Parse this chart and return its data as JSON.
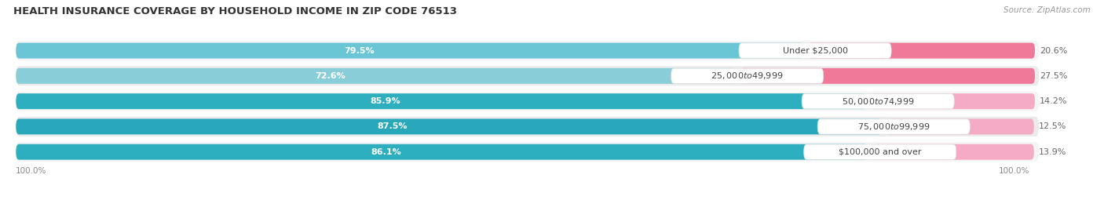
{
  "title": "HEALTH INSURANCE COVERAGE BY HOUSEHOLD INCOME IN ZIP CODE 76513",
  "source": "Source: ZipAtlas.com",
  "categories": [
    "Under $25,000",
    "$25,000 to $49,999",
    "$50,000 to $74,999",
    "$75,000 to $99,999",
    "$100,000 and over"
  ],
  "with_coverage": [
    79.5,
    72.6,
    85.9,
    87.5,
    86.1
  ],
  "without_coverage": [
    20.6,
    27.5,
    14.2,
    12.5,
    13.9
  ],
  "color_with_1": "#5bbccc",
  "color_with_2": "#8dd0d8",
  "color_with_3": "#2da8b8",
  "color_with_4": "#29a0b0",
  "color_with_5": "#2da8b8",
  "color_without_1": "#f07090",
  "color_without_2": "#f07090",
  "color_without_3": "#f4a0bc",
  "color_without_4": "#f4a0bc",
  "color_without_5": "#f4a0bc",
  "color_with": "#4ab8c8",
  "color_without": "#f07898",
  "title_fontsize": 9.5,
  "label_fontsize": 8,
  "source_fontsize": 7.5,
  "tick_fontsize": 7.5,
  "legend_fontsize": 8,
  "background_color": "#ffffff",
  "row_colors": [
    "#f0f0f0",
    "#e8e8e8",
    "#f0f0f0",
    "#e8e8e8",
    "#f0f0f0"
  ]
}
